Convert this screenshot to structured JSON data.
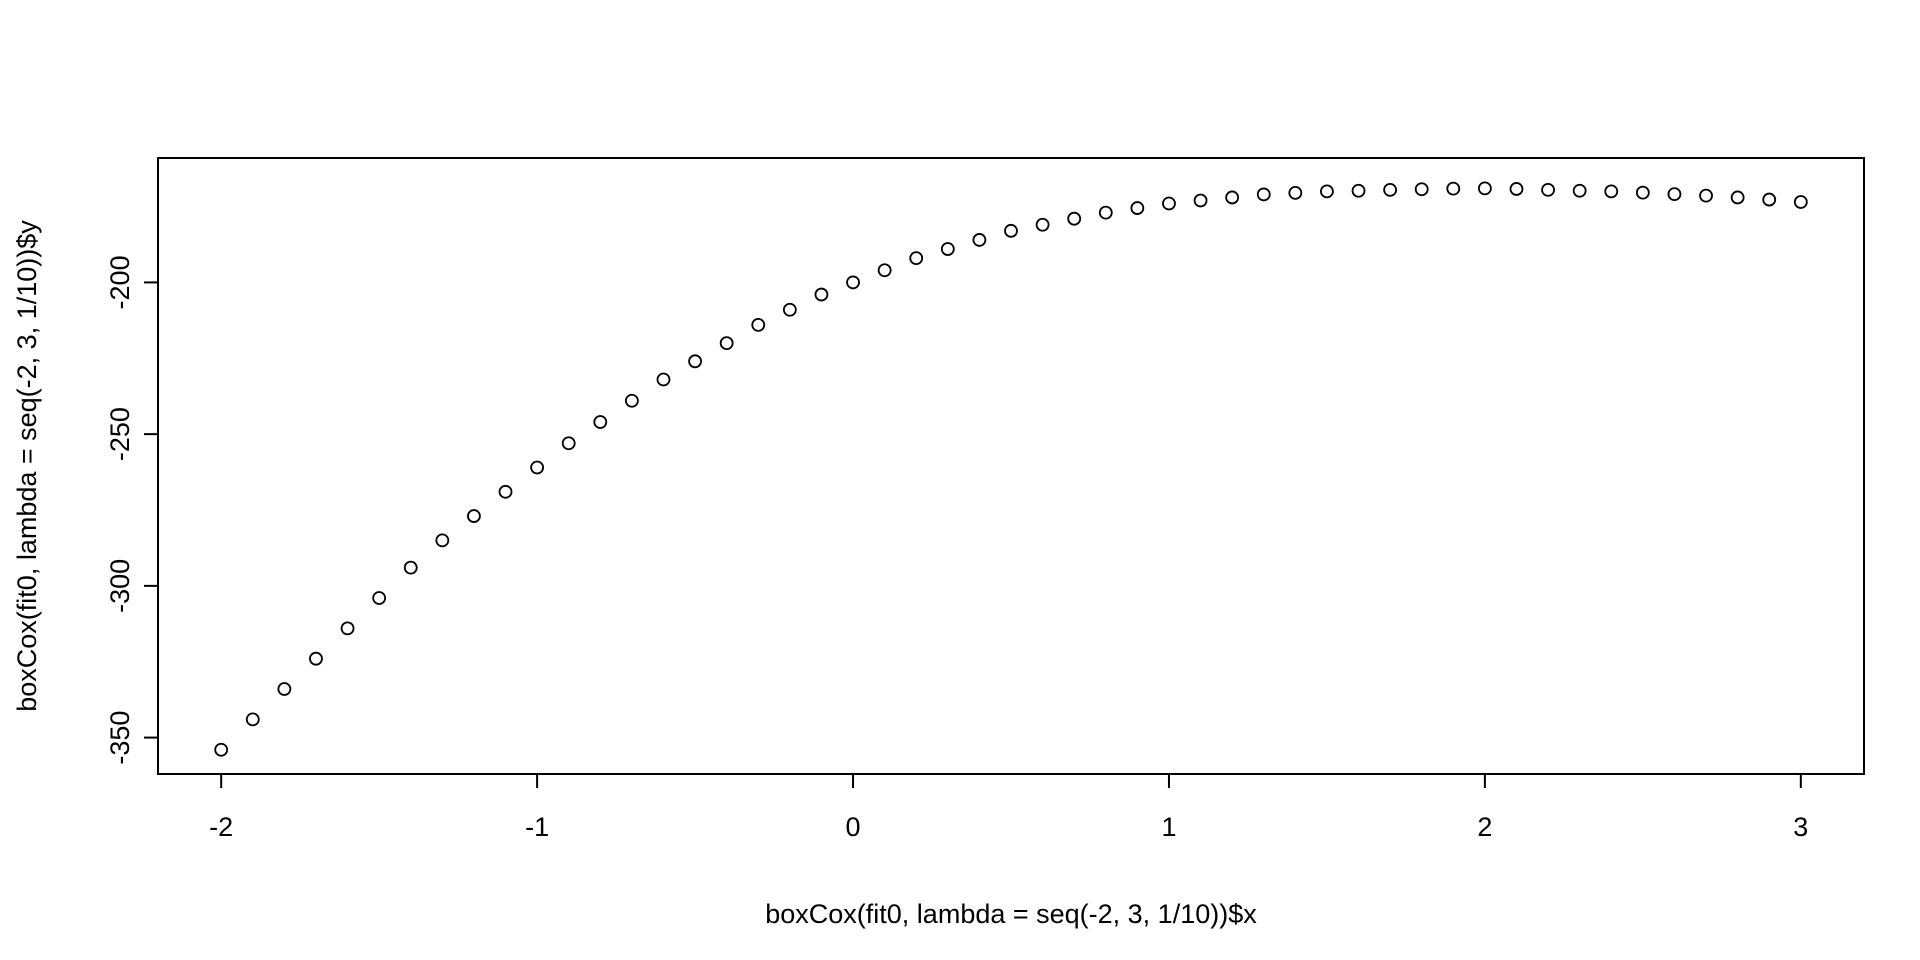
{
  "chart_data": {
    "type": "scatter",
    "title": "",
    "xlabel": "boxCox(fit0, lambda = seq(-2, 3, 1/10))$x",
    "ylabel": "boxCox(fit0, lambda = seq(-2, 3, 1/10))$y",
    "xlim": [
      -2.2,
      3.2
    ],
    "ylim": [
      -362,
      -159
    ],
    "x_ticks": [
      -2,
      -1,
      0,
      1,
      2,
      3
    ],
    "x_tick_labels": [
      "-2",
      "-1",
      "0",
      "1",
      "2",
      "3"
    ],
    "y_ticks": [
      -350,
      -300,
      -250,
      -200
    ],
    "y_tick_labels": [
      "-350",
      "-300",
      "-250",
      "-200"
    ],
    "grid": false,
    "marker": "open-circle",
    "colors": {
      "stroke": "#000000",
      "background": "#ffffff"
    },
    "x": [
      -2.0,
      -1.9,
      -1.8,
      -1.7,
      -1.6,
      -1.5,
      -1.4,
      -1.3,
      -1.2,
      -1.1,
      -1.0,
      -0.9,
      -0.8,
      -0.7,
      -0.6,
      -0.5,
      -0.4,
      -0.3,
      -0.2,
      -0.1,
      0.0,
      0.1,
      0.2,
      0.3,
      0.4,
      0.5,
      0.6,
      0.7,
      0.8,
      0.9,
      1.0,
      1.1,
      1.2,
      1.3,
      1.4,
      1.5,
      1.6,
      1.7,
      1.8,
      1.9,
      2.0,
      2.1,
      2.2,
      2.3,
      2.4,
      2.5,
      2.6,
      2.7,
      2.8,
      2.9,
      3.0
    ],
    "y": [
      -354,
      -344,
      -334,
      -324,
      -314,
      -304,
      -294,
      -285,
      -277,
      -269,
      -261,
      -253,
      -246,
      -239,
      -232,
      -226,
      -220,
      -214,
      -209,
      -204,
      -200,
      -196,
      -192,
      -189,
      -186,
      -183,
      -181,
      -179,
      -177,
      -175.5,
      -174,
      -173,
      -172,
      -171,
      -170.5,
      -170,
      -169.8,
      -169.5,
      -169.3,
      -169.1,
      -169,
      -169.2,
      -169.5,
      -169.8,
      -170,
      -170.4,
      -170.9,
      -171.4,
      -172,
      -172.7,
      -173.5
    ]
  }
}
